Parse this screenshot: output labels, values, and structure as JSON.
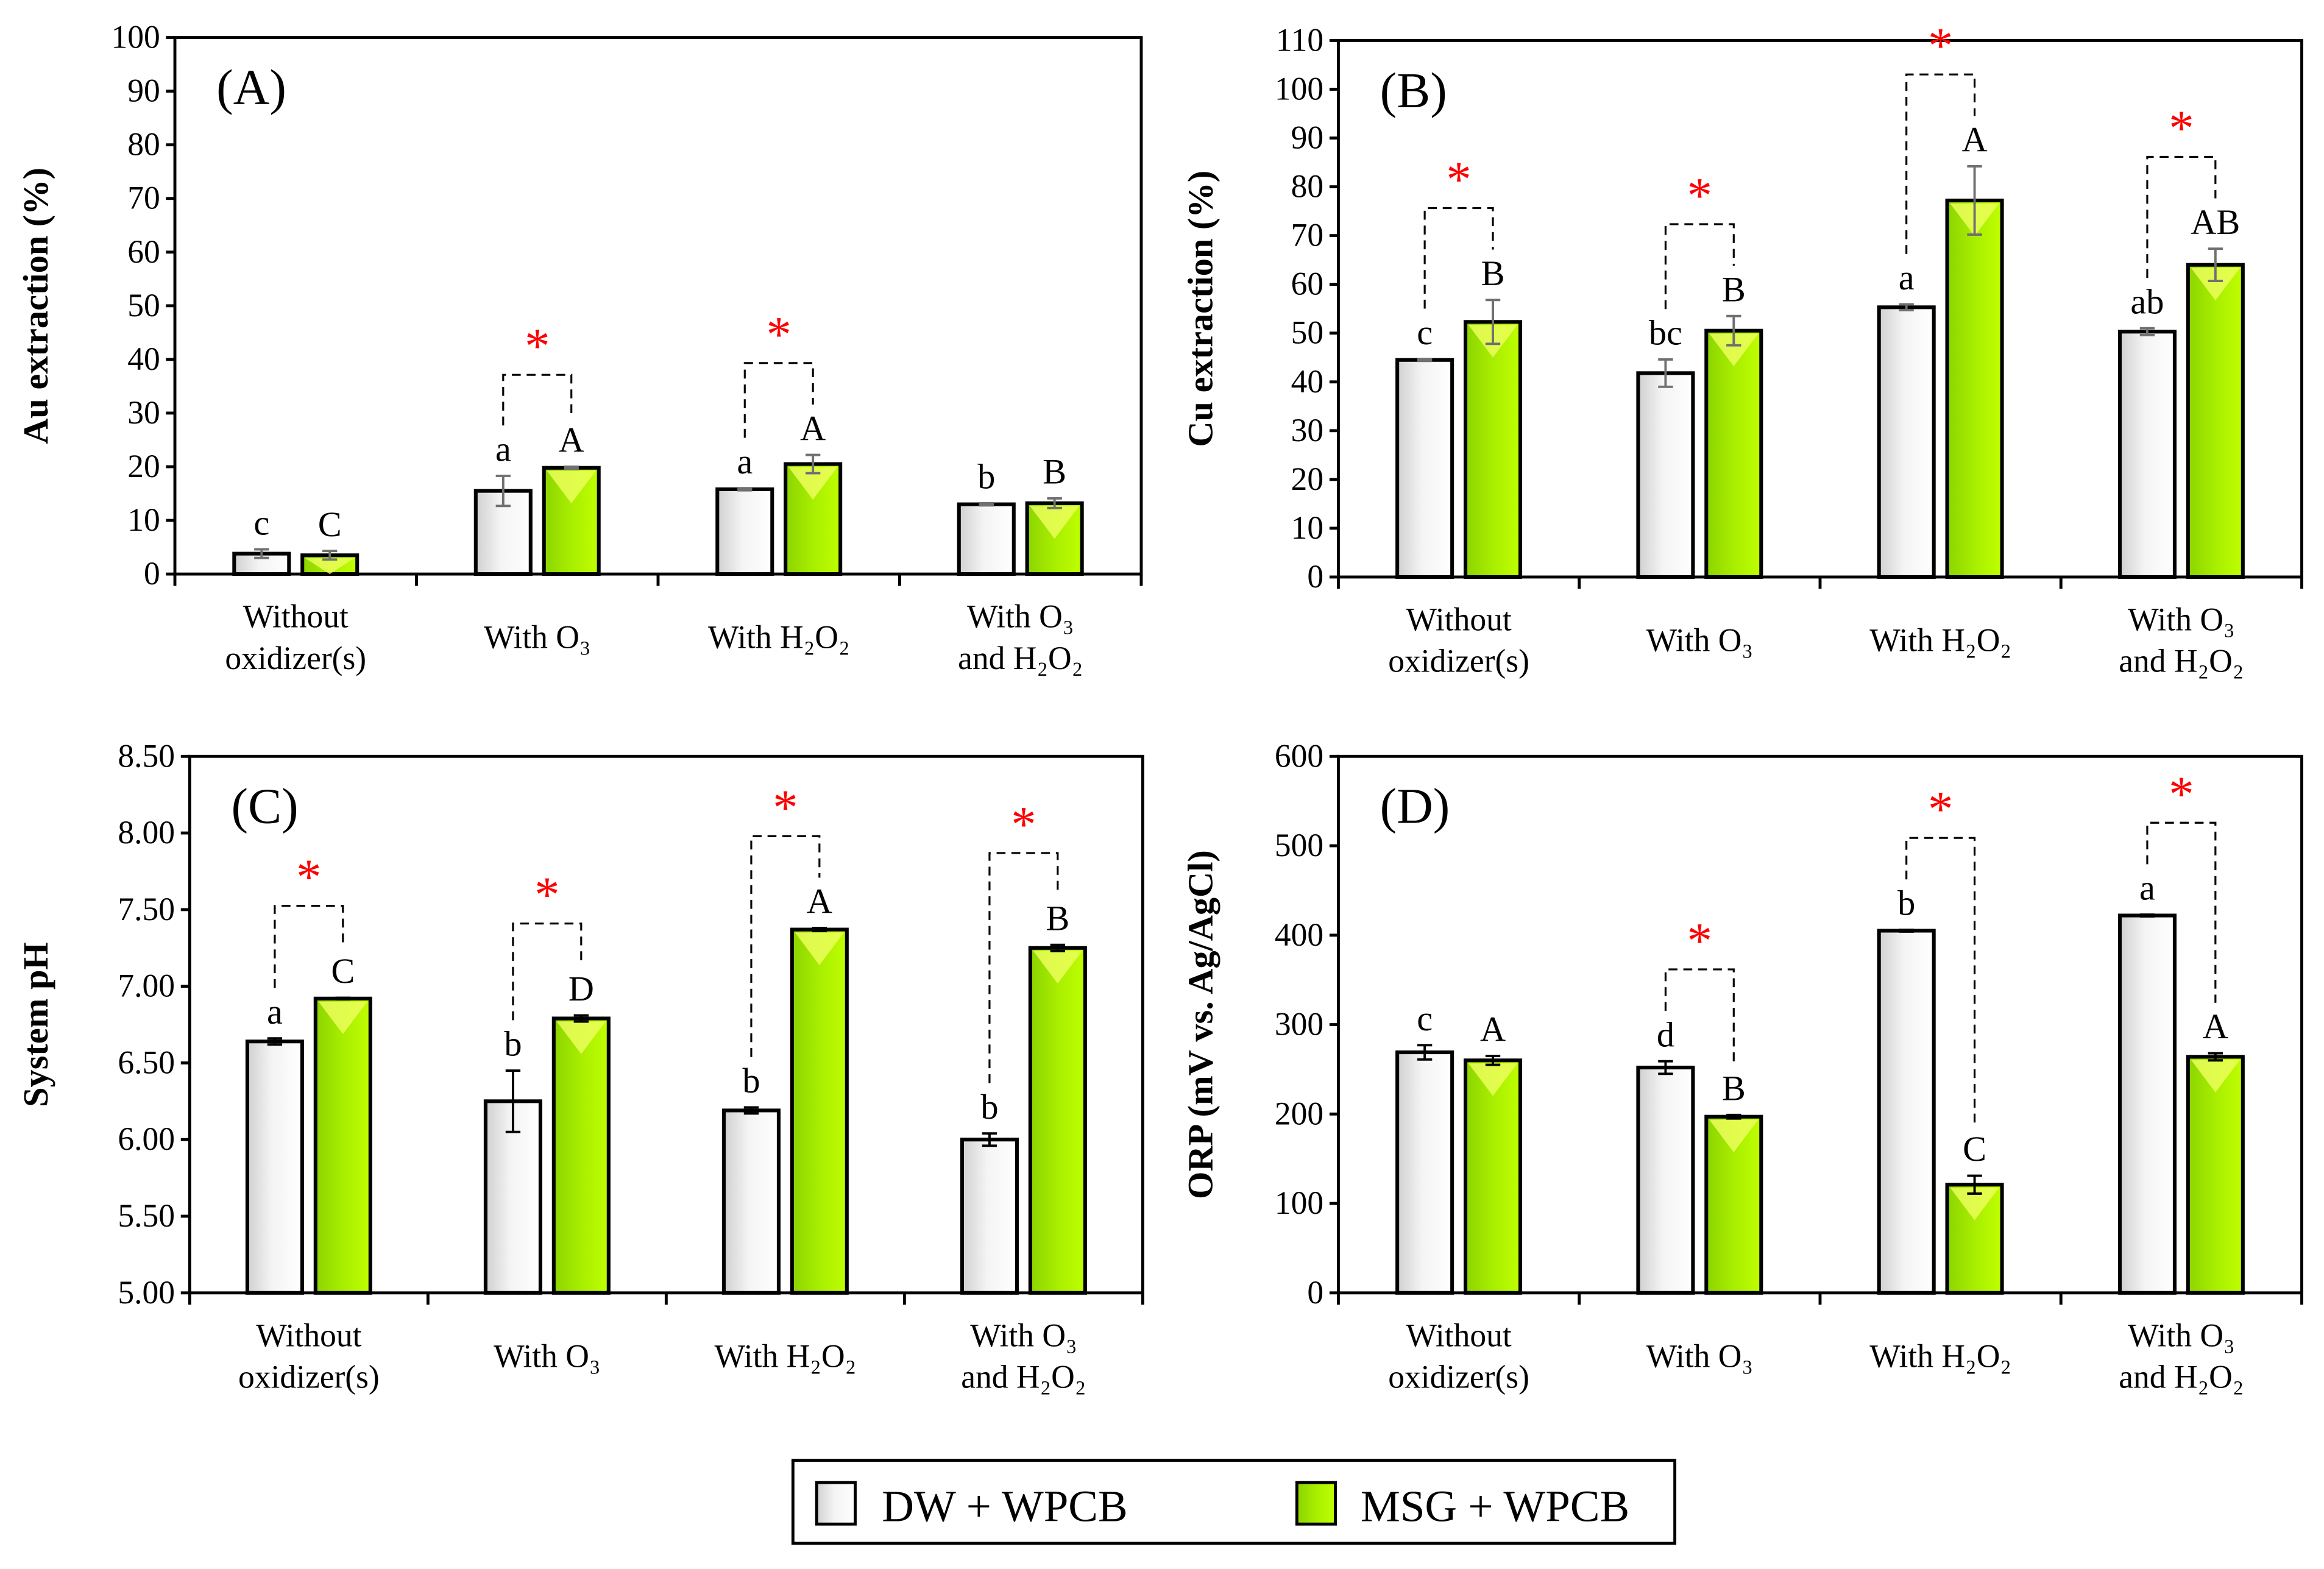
{
  "colors": {
    "dw_fill": "#ffffff",
    "msg_fill": "#a8f000",
    "msg_top": "#f0ff60",
    "star": "#ff0000",
    "error": "#707070"
  },
  "legend": {
    "dw": "DW + WPCB",
    "msg": "MSG + WPCB"
  },
  "chart_data": [
    {
      "type": "bar",
      "panel": "(A)",
      "ylabel": "Au extraction (%)",
      "ylim": [
        0,
        100
      ],
      "ystep": 10,
      "ydecimals": 0,
      "categories": [
        [
          "Without",
          "oxidizer(s)"
        ],
        [
          "With O₃"
        ],
        [
          "With H₂O₂"
        ],
        [
          "With O₃",
          "and H₂O₂"
        ]
      ],
      "series": [
        {
          "name": "DW + WPCB",
          "values": [
            3.8,
            15.5,
            15.8,
            13.0
          ],
          "errors": [
            0.8,
            2.8,
            0.2,
            0.2
          ],
          "letters": [
            "c",
            "a",
            "a",
            "b"
          ]
        },
        {
          "name": "MSG + WPCB",
          "values": [
            3.5,
            19.8,
            20.5,
            13.2
          ],
          "errors": [
            0.8,
            0.2,
            1.7,
            0.9
          ],
          "letters": [
            "C",
            "A",
            "A",
            "B"
          ]
        }
      ],
      "significant": [
        false,
        true,
        true,
        false
      ],
      "star": "*"
    },
    {
      "type": "bar",
      "panel": "(B)",
      "ylabel": "Cu extraction (%)",
      "ylim": [
        0,
        110
      ],
      "ystep": 10,
      "ydecimals": 0,
      "categories": [
        [
          "Without",
          "oxidizer(s)"
        ],
        [
          "With O₃"
        ],
        [
          "With H₂O₂"
        ],
        [
          "With O₃",
          "and H₂O₂"
        ]
      ],
      "series": [
        {
          "name": "DW + WPCB",
          "values": [
            44.5,
            41.8,
            55.3,
            50.3
          ],
          "errors": [
            0.2,
            2.8,
            0.6,
            0.7
          ],
          "letters": [
            "c",
            "bc",
            "a",
            "ab"
          ]
        },
        {
          "name": "MSG + WPCB",
          "values": [
            52.3,
            50.5,
            77.2,
            64.0
          ],
          "errors": [
            4.5,
            3.0,
            7.0,
            3.3
          ],
          "letters": [
            "B",
            "B",
            "A",
            "AB"
          ]
        }
      ],
      "significant": [
        true,
        true,
        true,
        true
      ],
      "star": "*"
    },
    {
      "type": "bar",
      "panel": "(C)",
      "ylabel": "System pH",
      "ylim": [
        5,
        8.5
      ],
      "ystep": 0.5,
      "ydecimals": 2,
      "categories": [
        [
          "Without",
          "oxidizer(s)"
        ],
        [
          "With O₃"
        ],
        [
          "With H₂O₂"
        ],
        [
          "With O₃",
          "and H₂O₂"
        ]
      ],
      "series": [
        {
          "name": "DW + WPCB",
          "values": [
            6.64,
            6.25,
            6.19,
            6.0
          ],
          "errors": [
            0.02,
            0.2,
            0.02,
            0.04
          ],
          "letters": [
            "a",
            "b",
            "b",
            "b"
          ]
        },
        {
          "name": "MSG + WPCB",
          "values": [
            6.92,
            6.79,
            7.37,
            7.25
          ],
          "errors": [
            0.005,
            0.02,
            0.01,
            0.02
          ],
          "letters": [
            "C",
            "D",
            "A",
            "B"
          ]
        }
      ],
      "significant": [
        true,
        true,
        true,
        true
      ],
      "star": "*"
    },
    {
      "type": "bar",
      "panel": "(D)",
      "ylabel": "ORP (mV vs. Ag/AgCl)",
      "ylim": [
        0,
        600
      ],
      "ystep": 100,
      "ydecimals": 0,
      "categories": [
        [
          "Without",
          "oxidizer(s)"
        ],
        [
          "With O₃"
        ],
        [
          "With H₂O₂"
        ],
        [
          "With O₃",
          "and H₂O₂"
        ]
      ],
      "series": [
        {
          "name": "DW + WPCB",
          "values": [
            269,
            252,
            405,
            422
          ],
          "errors": [
            8,
            7,
            1,
            1
          ],
          "letters": [
            "c",
            "d",
            "b",
            "a"
          ]
        },
        {
          "name": "MSG + WPCB",
          "values": [
            260,
            197,
            121,
            264
          ],
          "errors": [
            5,
            2,
            10,
            4
          ],
          "letters": [
            "A",
            "B",
            "C",
            "A"
          ]
        }
      ],
      "significant": [
        false,
        true,
        true,
        true
      ],
      "star": "*"
    }
  ]
}
